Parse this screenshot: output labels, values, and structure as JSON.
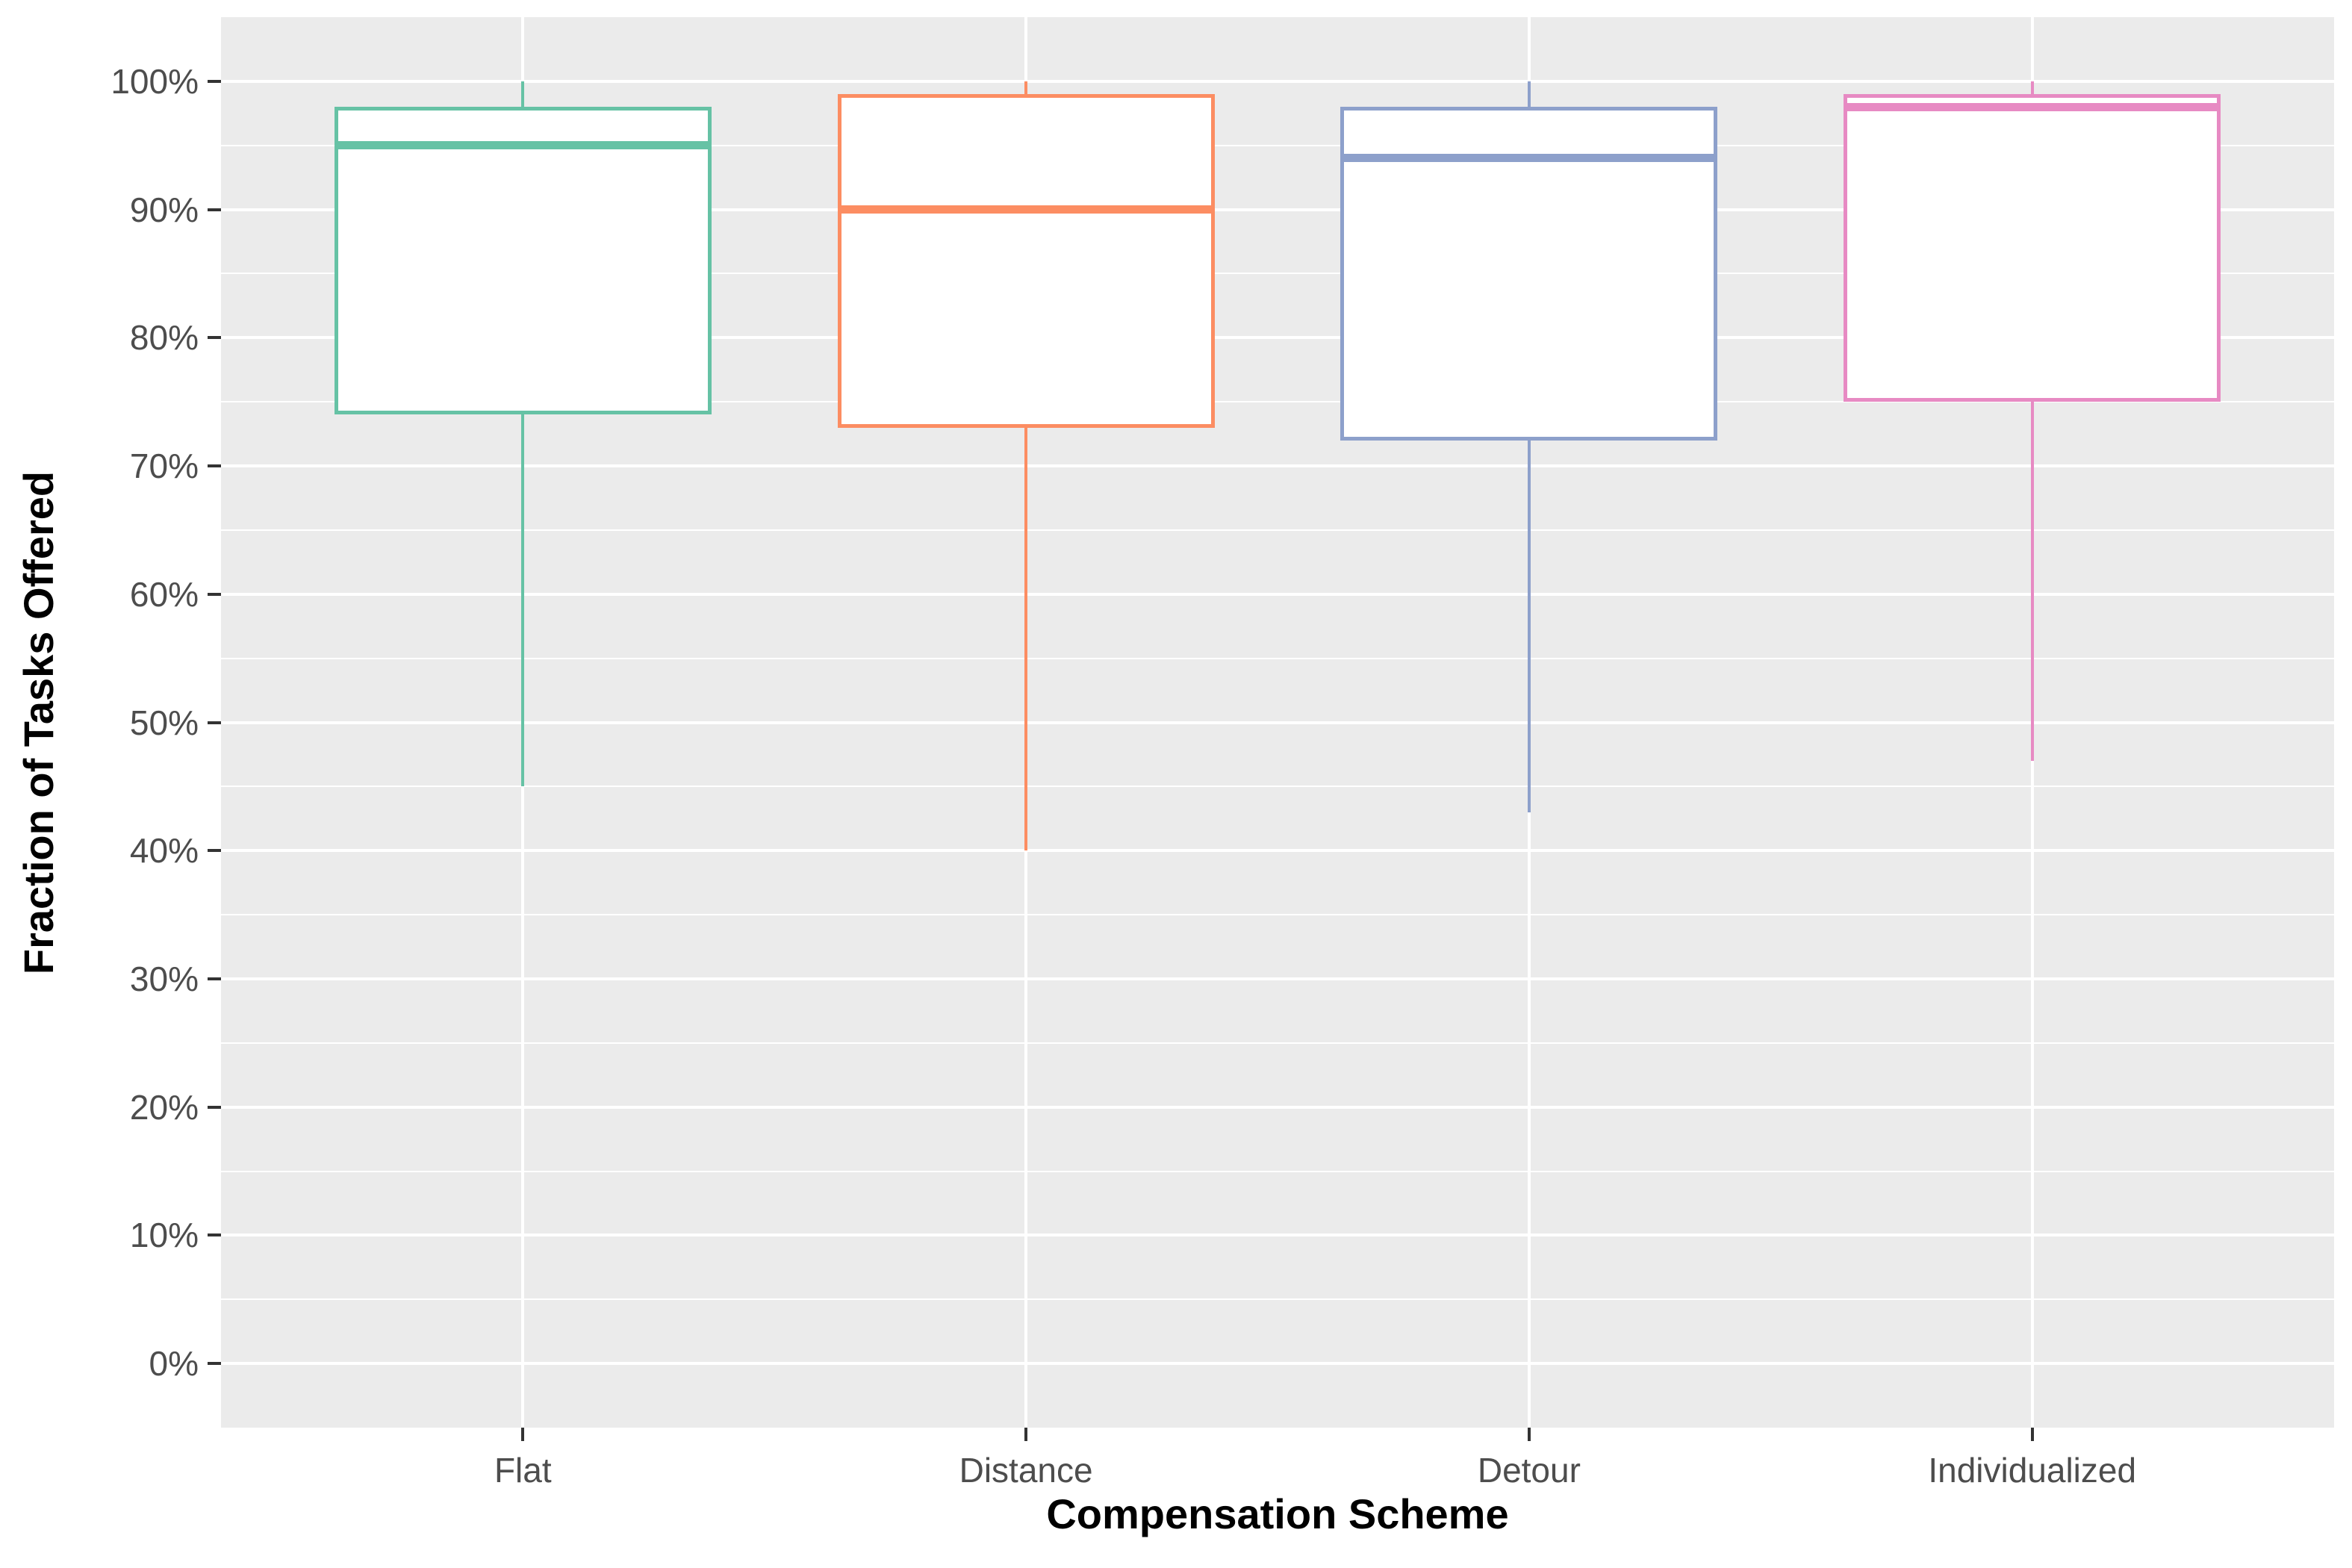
{
  "chart_data": {
    "type": "boxplot",
    "title": "",
    "xlabel": "Compensation Scheme",
    "ylabel": "Fraction of Tasks Offered",
    "categories": [
      "Flat",
      "Distance",
      "Detour",
      "Individualized"
    ],
    "series": [
      {
        "name": "Flat",
        "color": "#66C2A5",
        "min": 45,
        "q1": 74,
        "median": 95,
        "q3": 98,
        "max": 100
      },
      {
        "name": "Distance",
        "color": "#FC8D62",
        "min": 40,
        "q1": 73,
        "median": 90,
        "q3": 99,
        "max": 100
      },
      {
        "name": "Detour",
        "color": "#8DA0CB",
        "min": 43,
        "q1": 72,
        "median": 94,
        "q3": 98,
        "max": 100
      },
      {
        "name": "Individualized",
        "color": "#E78AC3",
        "min": 47,
        "q1": 75,
        "median": 98,
        "q3": 99,
        "max": 100
      }
    ],
    "y_axis": {
      "ticks": [
        0,
        10,
        20,
        30,
        40,
        50,
        60,
        70,
        80,
        90,
        100
      ],
      "tick_labels": [
        "0%",
        "10%",
        "20%",
        "30%",
        "40%",
        "50%",
        "60%",
        "70%",
        "80%",
        "90%",
        "100%"
      ],
      "minor_ticks": [
        5,
        15,
        25,
        35,
        45,
        55,
        65,
        75,
        85,
        95
      ],
      "range": [
        -5,
        105
      ]
    },
    "legend": "none",
    "grid": "on",
    "outliers": [],
    "style": {
      "panel_background": "#EBEBEB",
      "gridline_color": "#FFFFFF",
      "tick_color": "#333333",
      "tick_label_color": "#4D4D4D",
      "axis_title_color": "#000000",
      "box_fill": "#FFFFFF"
    }
  }
}
